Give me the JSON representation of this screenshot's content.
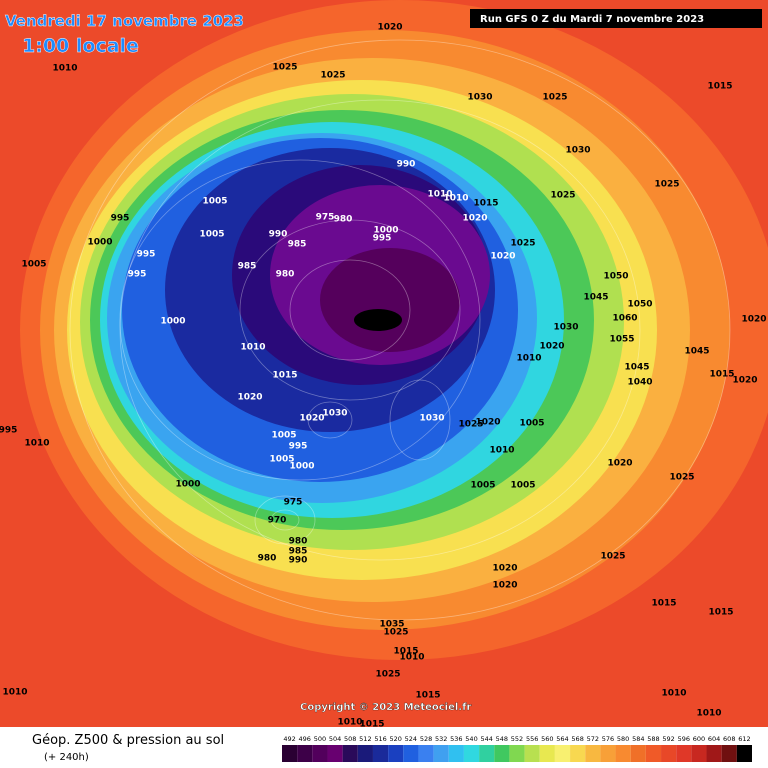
{
  "header": {
    "date": "Vendredi 17 novembre 2023",
    "time": "1:00 locale",
    "run": "Run GFS 0 Z du Mardi 7 novembre 2023"
  },
  "footer": {
    "title": "Géop. Z500 & pression au sol",
    "subtitle": "(+ 240h)",
    "copyright": "Copyright © 2023 Meteociel.fr"
  },
  "legend": {
    "ticks": [
      492,
      496,
      500,
      504,
      508,
      512,
      516,
      520,
      524,
      528,
      532,
      536,
      540,
      544,
      548,
      552,
      556,
      560,
      564,
      568,
      572,
      576,
      580,
      584,
      588,
      592,
      596,
      600,
      604,
      608,
      612
    ],
    "colors": [
      "#2a0033",
      "#3d0048",
      "#52005c",
      "#680070",
      "#2a0a5a",
      "#1a1a7a",
      "#1a2a9a",
      "#1a40c0",
      "#2060e0",
      "#3a80f0",
      "#40a0f0",
      "#30c0f0",
      "#30d8e0",
      "#30d0a0",
      "#40c860",
      "#80d850",
      "#b8e050",
      "#e8e850",
      "#f8f070",
      "#f8d850",
      "#f8b840",
      "#f8a038",
      "#f88a30",
      "#f07028",
      "#f05a28",
      "#e84828",
      "#e03828",
      "#c82820",
      "#a01818",
      "#701010",
      "#000000"
    ]
  },
  "isobar_labels": [
    "1020",
    "1010",
    "1025",
    "1025",
    "1030",
    "1025",
    "1015",
    "990",
    "1010",
    "1010",
    "1015",
    "1030",
    "1025",
    "1025",
    "1005",
    "995",
    "975",
    "980",
    "1000",
    "995",
    "990",
    "985",
    "1005",
    "1000",
    "995",
    "1005",
    "995",
    "985",
    "980",
    "1020",
    "1025",
    "1020",
    "1050",
    "1045",
    "1050",
    "1060",
    "1030",
    "1055",
    "1020",
    "1010",
    "1000",
    "1010",
    "1015",
    "1045",
    "1045",
    "1040",
    "1015",
    "1020",
    "1020",
    "1020",
    "1030",
    "1020",
    "1030",
    "1025",
    "1020",
    "1005",
    "995",
    "1010",
    "1005",
    "995",
    "1010",
    "1005",
    "1000",
    "1000",
    "1005",
    "1005",
    "1020",
    "1025",
    "975",
    "970",
    "980",
    "985",
    "990",
    "980",
    "1025",
    "1020",
    "1020",
    "1015",
    "1015",
    "1035",
    "1025",
    "1015",
    "1010",
    "1025",
    "1015",
    "1010",
    "1010",
    "1010",
    "1010",
    "1015"
  ]
}
